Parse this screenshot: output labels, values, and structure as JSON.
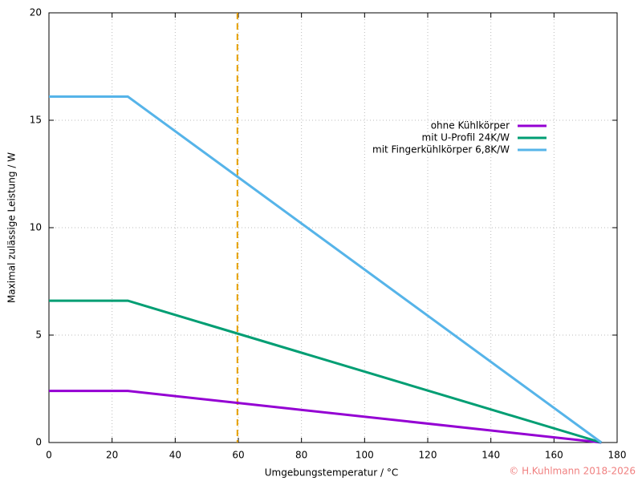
{
  "chart_data": {
    "type": "line",
    "xlabel": "Umgebungstemperatur / °C",
    "ylabel": "Maximal zulässige Leistung / W",
    "x": [
      0,
      25,
      175
    ],
    "series": [
      {
        "name": "ohne Kühlkörper",
        "color": "#9400d3",
        "values": [
          2.4,
          2.4,
          0
        ]
      },
      {
        "name": "mit U-Profil 24K/W",
        "color": "#009e73",
        "values": [
          6.6,
          6.6,
          0
        ]
      },
      {
        "name": "mit Fingerkühlkörper 6,8K/W",
        "color": "#56b4e9",
        "values": [
          16.1,
          16.1,
          0
        ]
      }
    ],
    "reference_line": {
      "x": 59.7,
      "color": "#e69f00"
    },
    "xlim": [
      0,
      180
    ],
    "xticks": [
      0,
      20,
      40,
      60,
      80,
      100,
      120,
      140,
      160,
      180
    ],
    "ylim": [
      0,
      20
    ],
    "yticks": [
      0,
      5,
      10,
      15,
      20
    ],
    "grid": true,
    "legend": "upper-right",
    "copyright": "© H.Kuhlmann 2018-2026"
  }
}
